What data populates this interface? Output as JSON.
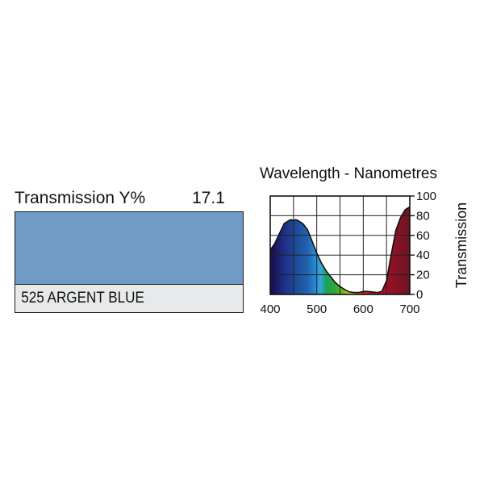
{
  "transmission": {
    "label": "Transmission Y%",
    "value": "17.1"
  },
  "filter": {
    "name": "525 ARGENT BLUE",
    "color": "#6f9bc5"
  },
  "chart_data": {
    "type": "area",
    "title": "Wavelength - Nanometres",
    "xlabel": "",
    "ylabel": "Transmission",
    "xlim": [
      400,
      700
    ],
    "ylim": [
      0,
      100
    ],
    "xticks": [
      "400",
      "500",
      "600",
      "700"
    ],
    "yticks": [
      "0",
      "20",
      "40",
      "60",
      "80",
      "100"
    ],
    "grid": true,
    "series": [
      {
        "x": [
          400,
          410,
          420,
          430,
          440,
          445,
          450,
          455,
          460,
          470,
          480,
          490,
          500,
          510,
          520,
          530,
          540,
          550,
          560,
          570,
          580,
          590,
          600,
          610,
          620,
          630,
          640,
          650,
          660,
          670,
          680,
          690,
          700
        ],
        "y": [
          45,
          52,
          62,
          72,
          75,
          76,
          75,
          76,
          75,
          72,
          66,
          54,
          42,
          32,
          24,
          18,
          12,
          8,
          5,
          2.5,
          2,
          2,
          3,
          3,
          2.5,
          2,
          3,
          14,
          40,
          65,
          78,
          86,
          89
        ]
      }
    ]
  }
}
